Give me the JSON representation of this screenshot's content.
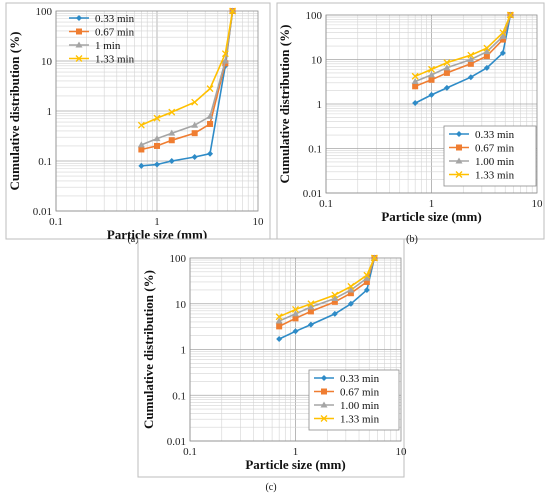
{
  "chart_data": [
    {
      "type": "line",
      "label": "(a)",
      "xlabel": "Particle size (mm)",
      "ylabel": "Cumulative distribution (%)",
      "xscale": "log",
      "yscale": "log",
      "xlim": [
        0.1,
        10
      ],
      "ylim": [
        0.01,
        100
      ],
      "x_ticks": [
        "0.1",
        "1",
        "10"
      ],
      "y_ticks": [
        "0.01",
        "0.1",
        "1",
        "10",
        "100"
      ],
      "grid": true,
      "legend_position": "top-left",
      "x": [
        0.7,
        1.0,
        1.4,
        2.36,
        3.35,
        4.75,
        5.6
      ],
      "series": [
        {
          "name": "0.33 min",
          "color": "#2e8bc7",
          "marker": "diamond",
          "values": [
            0.08,
            0.085,
            0.1,
            0.12,
            0.14,
            8,
            100
          ]
        },
        {
          "name": "0.67 min",
          "color": "#ef7d31",
          "marker": "square",
          "values": [
            0.17,
            0.2,
            0.26,
            0.36,
            0.55,
            9,
            100
          ]
        },
        {
          "name": "1 min",
          "color": "#a5a5a5",
          "marker": "triangle",
          "values": [
            0.21,
            0.28,
            0.36,
            0.52,
            0.78,
            10,
            100
          ]
        },
        {
          "name": "1.33 min",
          "color": "#ffc000",
          "marker": "x",
          "values": [
            0.52,
            0.72,
            0.95,
            1.5,
            2.8,
            14,
            100
          ]
        }
      ]
    },
    {
      "type": "line",
      "label": "(b)",
      "xlabel": "Particle size (mm)",
      "ylabel": "Cumulative distribution (%)",
      "xscale": "log",
      "yscale": "log",
      "xlim": [
        0.1,
        10
      ],
      "ylim": [
        0.01,
        100
      ],
      "x_ticks": [
        "0.1",
        "1",
        "10"
      ],
      "y_ticks": [
        "0.01",
        "0.1",
        "1",
        "10",
        "100"
      ],
      "grid": true,
      "legend_position": "bottom-right",
      "x": [
        0.7,
        1.0,
        1.4,
        2.36,
        3.35,
        4.75,
        5.6
      ],
      "series": [
        {
          "name": "0.33 min",
          "color": "#2e8bc7",
          "marker": "diamond",
          "values": [
            1.05,
            1.6,
            2.3,
            4.0,
            6.5,
            14,
            100
          ]
        },
        {
          "name": "0.67 min",
          "color": "#ef7d31",
          "marker": "square",
          "values": [
            2.5,
            3.5,
            5.0,
            8.0,
            12,
            28,
            100
          ]
        },
        {
          "name": "1.00 min",
          "color": "#a5a5a5",
          "marker": "triangle",
          "values": [
            3.2,
            4.5,
            6.5,
            10,
            15,
            33,
            100
          ]
        },
        {
          "name": "1.33 min",
          "color": "#ffc000",
          "marker": "x",
          "values": [
            4.2,
            6.0,
            8.5,
            12.5,
            18,
            40,
            100
          ]
        }
      ]
    },
    {
      "type": "line",
      "label": "(c)",
      "xlabel": "Particle size (mm)",
      "ylabel": "Cumulative distribution (%)",
      "xscale": "log",
      "yscale": "log",
      "xlim": [
        0.1,
        10
      ],
      "ylim": [
        0.01,
        100
      ],
      "x_ticks": [
        "0.1",
        "1",
        "10"
      ],
      "y_ticks": [
        "0.01",
        "0.1",
        "1",
        "10",
        "100"
      ],
      "grid": true,
      "legend_position": "bottom-right",
      "x": [
        0.7,
        1.0,
        1.4,
        2.36,
        3.35,
        4.75,
        5.6
      ],
      "series": [
        {
          "name": "0.33 min",
          "color": "#2e8bc7",
          "marker": "diamond",
          "values": [
            1.7,
            2.5,
            3.5,
            6.0,
            10,
            20,
            100
          ]
        },
        {
          "name": "0.67 min",
          "color": "#ef7d31",
          "marker": "square",
          "values": [
            3.2,
            4.8,
            6.8,
            11,
            17,
            30,
            100
          ]
        },
        {
          "name": "1.00 min",
          "color": "#a5a5a5",
          "marker": "triangle",
          "values": [
            4.2,
            6.0,
            8.5,
            13,
            20,
            36,
            100
          ]
        },
        {
          "name": "1.33 min",
          "color": "#ffc000",
          "marker": "x",
          "values": [
            5.2,
            7.5,
            10,
            15.5,
            24,
            42,
            100
          ]
        }
      ]
    }
  ]
}
